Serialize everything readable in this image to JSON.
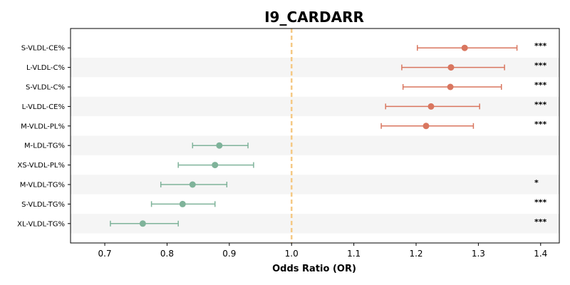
{
  "chart_data": {
    "type": "forest",
    "title": "I9_CARDARR",
    "xlabel": "Odds Ratio (OR)",
    "xlim": [
      0.645,
      1.43
    ],
    "xticks": [
      0.7,
      0.8,
      0.9,
      1.0,
      1.1,
      1.2,
      1.3,
      1.4
    ],
    "xtick_labels": [
      "0.7",
      "0.8",
      "0.9",
      "1.0",
      "1.1",
      "1.2",
      "1.3",
      "1.4"
    ],
    "reference_line": 1.0,
    "colors": {
      "positive": "#d9765f",
      "negative": "#7fb39a",
      "reference": "#f5c985",
      "band": "#f5f5f5"
    },
    "rows": [
      {
        "label": "S-VLDL-CE%",
        "or": 1.278,
        "lower": 1.202,
        "upper": 1.362,
        "sig": "***",
        "direction": "positive"
      },
      {
        "label": "L-VLDL-C%",
        "or": 1.256,
        "lower": 1.177,
        "upper": 1.342,
        "sig": "***",
        "direction": "positive"
      },
      {
        "label": "S-VLDL-C%",
        "or": 1.255,
        "lower": 1.179,
        "upper": 1.337,
        "sig": "***",
        "direction": "positive"
      },
      {
        "label": "L-VLDL-CE%",
        "or": 1.224,
        "lower": 1.151,
        "upper": 1.302,
        "sig": "***",
        "direction": "positive"
      },
      {
        "label": "M-VLDL-PL%",
        "or": 1.216,
        "lower": 1.144,
        "upper": 1.292,
        "sig": "***",
        "direction": "positive"
      },
      {
        "label": "M-LDL-TG%",
        "or": 0.884,
        "lower": 0.841,
        "upper": 0.93,
        "sig": "",
        "direction": "negative"
      },
      {
        "label": "XS-VLDL-PL%",
        "or": 0.877,
        "lower": 0.818,
        "upper": 0.939,
        "sig": "",
        "direction": "negative"
      },
      {
        "label": "M-VLDL-TG%",
        "or": 0.841,
        "lower": 0.79,
        "upper": 0.896,
        "sig": "*",
        "direction": "negative"
      },
      {
        "label": "S-VLDL-TG%",
        "or": 0.825,
        "lower": 0.775,
        "upper": 0.877,
        "sig": "***",
        "direction": "negative"
      },
      {
        "label": "XL-VLDL-TG%",
        "or": 0.761,
        "lower": 0.709,
        "upper": 0.818,
        "sig": "***",
        "direction": "negative"
      }
    ]
  }
}
